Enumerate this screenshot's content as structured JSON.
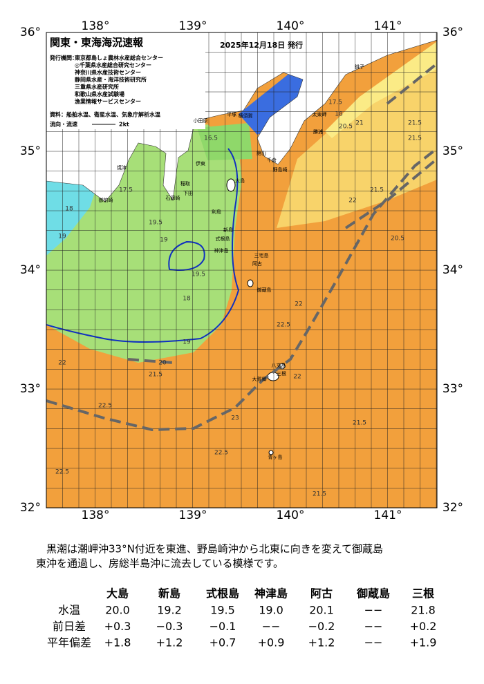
{
  "header": {
    "title": "関東・東海海況速報",
    "date": "2025年12月18日 発行",
    "credits": [
      "発行機関：",
      "東京都島しょ農林水産総合センター",
      "◎千葉県水産総合研究センター",
      "神奈川県水産技術センター",
      "静岡県水産・海洋技術研究所",
      "三重県水産研究所",
      "和歌山県水産試験場",
      "漁業情報サービスセンター"
    ],
    "source": "資料：船舶水温、衛星水温、気象庁解析水温",
    "flow_label": "流向・流速",
    "flow_scale": "2kt"
  },
  "map": {
    "lon_labels": [
      "138°",
      "139°",
      "140°",
      "141°"
    ],
    "lat_labels": [
      "36°",
      "35°",
      "34°",
      "33°",
      "32°"
    ],
    "places": [
      "銚子",
      "太東岬",
      "勝浦",
      "小田原",
      "平塚",
      "横須賀",
      "館山",
      "千倉",
      "野島崎",
      "大島",
      "伊東",
      "稲取",
      "下田",
      "石廊崎",
      "焼津",
      "御前崎",
      "利島",
      "新島",
      "式根島",
      "神津島",
      "三宅島",
      "阿古",
      "御蔵島",
      "八丈島",
      "三根",
      "大賀郷",
      "青ヶ島"
    ],
    "contours": [
      "17.5",
      "18",
      "20.5",
      "21",
      "21.5",
      "21.5",
      "22",
      "21.5",
      "20.5",
      "16.5",
      "17.5",
      "18",
      "19",
      "19.5",
      "19",
      "19.5",
      "18",
      "19",
      "20",
      "21.5",
      "22.5",
      "22.5",
      "22",
      "23",
      "22.5",
      "22",
      "22.5",
      "21.5",
      "21.5",
      "22"
    ]
  },
  "description": [
    "黒潮は潮岬沖33°N付近を東進、野島崎沖から北東に向きを変えて御蔵島",
    "東沖を通過し、房総半島沖に流去している模様です。"
  ],
  "table": {
    "columns": [
      "大島",
      "新島",
      "式根島",
      "神津島",
      "阿古",
      "御蔵島",
      "三根"
    ],
    "rows": [
      {
        "label": "水温",
        "cells": [
          "20.0",
          "19.2",
          "19.5",
          "19.0",
          "20.1",
          "−−",
          "21.8"
        ]
      },
      {
        "label": "前日差",
        "cells": [
          "+0.3",
          "−0.3",
          "−0.1",
          "−−",
          "−0.2",
          "−−",
          "+0.2"
        ]
      },
      {
        "label": "平年偏差",
        "cells": [
          "+1.8",
          "+1.2",
          "+0.7",
          "+0.9",
          "+1.2",
          "−−",
          "+1.9"
        ]
      }
    ]
  }
}
